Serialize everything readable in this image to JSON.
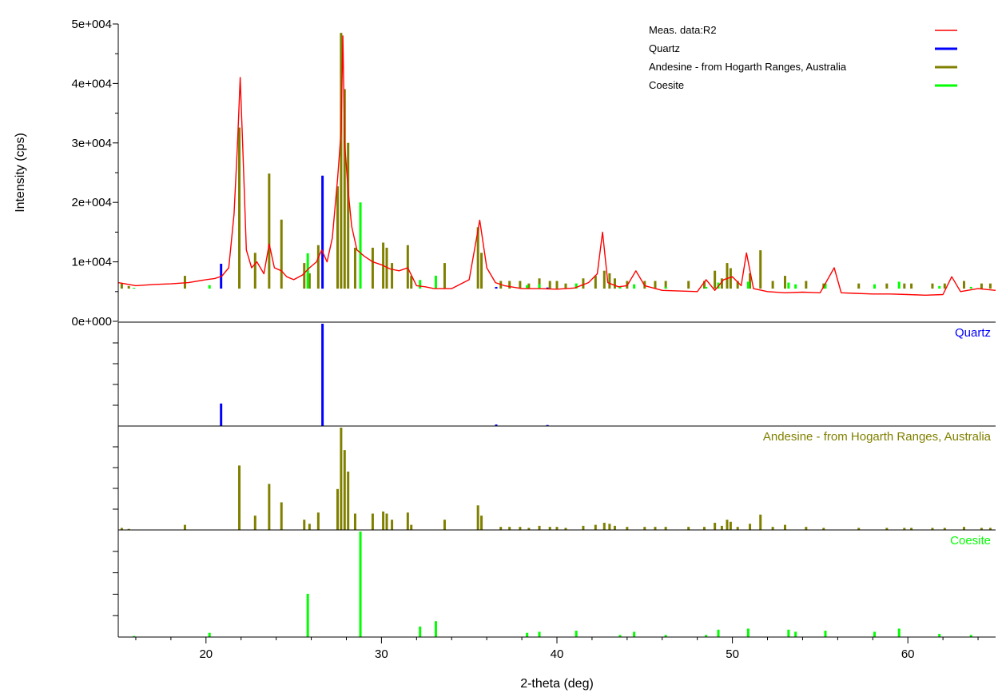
{
  "chart_data": {
    "type": "line",
    "xlabel": "2-theta (deg)",
    "ylabel": "Intensity (cps)",
    "xlim": [
      15,
      65
    ],
    "x_ticks": [
      20,
      30,
      40,
      50,
      60
    ],
    "x_tick_labels": [
      "20",
      "30",
      "40",
      "50",
      "60"
    ],
    "ylim": [
      0,
      50000
    ],
    "y_ticks": [
      0,
      10000,
      20000,
      30000,
      40000,
      50000
    ],
    "y_tick_labels": [
      "0e+000",
      "1e+004",
      "2e+004",
      "3e+004",
      "4e+004",
      "5e+004"
    ],
    "grid": false,
    "legend": {
      "position": "top-right",
      "entries": [
        {
          "name": "Meas. data:R2",
          "color": "#ff0000",
          "style": "line"
        },
        {
          "name": "Quartz",
          "color": "#0000ff",
          "style": "bar"
        },
        {
          "name": "Andesine - from Hogarth Ranges, Australia",
          "color": "#808000",
          "style": "bar"
        },
        {
          "name": "Coesite",
          "color": "#00ff00",
          "style": "bar"
        }
      ]
    },
    "measured": {
      "name": "Meas. data:R2",
      "color": "#ff0000",
      "x": [
        15,
        16,
        17,
        18,
        19,
        20,
        20.5,
        20.9,
        21.3,
        21.6,
        21.8,
        21.95,
        22.1,
        22.3,
        22.6,
        22.9,
        23.3,
        23.6,
        23.9,
        24.3,
        24.6,
        25,
        25.5,
        25.9,
        26.3,
        26.6,
        26.9,
        27.2,
        27.5,
        27.7,
        27.8,
        27.9,
        28.1,
        28.3,
        28.6,
        29,
        29.5,
        30,
        30.5,
        31,
        31.5,
        32,
        32.5,
        33,
        34,
        35,
        35.6,
        36,
        36.5,
        37,
        38,
        39,
        40,
        41,
        41.8,
        42.3,
        42.6,
        42.9,
        43.5,
        44,
        44.5,
        45,
        46,
        47,
        48,
        48.5,
        49,
        49.5,
        50,
        50.5,
        50.8,
        51.2,
        52,
        53,
        54,
        55,
        55.8,
        56.2,
        57,
        58,
        59,
        60,
        61,
        62,
        62.5,
        63,
        64,
        65
      ],
      "y": [
        6500,
        6000,
        6200,
        6300,
        6500,
        7000,
        7200,
        7600,
        9000,
        18000,
        30000,
        41000,
        29000,
        12000,
        9000,
        10000,
        8000,
        13000,
        9000,
        8500,
        7500,
        7000,
        7800,
        9000,
        10000,
        12000,
        10000,
        14000,
        24000,
        32000,
        48000,
        30000,
        22000,
        16000,
        12000,
        11000,
        10000,
        9500,
        8800,
        8500,
        9000,
        6000,
        5800,
        5500,
        5500,
        7000,
        17000,
        9000,
        6500,
        6000,
        5500,
        5500,
        5400,
        5600,
        6500,
        8000,
        15000,
        6500,
        5800,
        6000,
        8500,
        6000,
        5200,
        5100,
        5000,
        7000,
        5200,
        7000,
        7500,
        6000,
        11500,
        5500,
        5000,
        4800,
        4900,
        4800,
        9000,
        4800,
        4700,
        4600,
        4600,
        4500,
        4400,
        4500,
        7500,
        5000,
        5500,
        5200
      ]
    },
    "series": [
      {
        "name": "Quartz",
        "color": "#0000ff",
        "type": "stick",
        "positions": [
          20.86,
          26.64,
          36.54,
          39.46
        ],
        "relative_intensity": [
          22,
          100,
          1.5,
          1
        ]
      },
      {
        "name": "Andesine - from Hogarth Ranges, Australia",
        "color": "#808000",
        "type": "stick",
        "positions": [
          15.2,
          15.6,
          18.8,
          21.9,
          22.8,
          23.6,
          24.3,
          25.6,
          25.9,
          26.4,
          27.5,
          27.7,
          27.9,
          28.1,
          28.5,
          29.5,
          30.1,
          30.3,
          30.6,
          31.5,
          31.7,
          33.6,
          35.5,
          35.7,
          36.8,
          37.3,
          37.9,
          38.4,
          39.0,
          39.6,
          40.0,
          40.5,
          41.5,
          42.2,
          42.7,
          43.0,
          43.3,
          44.0,
          45.0,
          45.6,
          46.2,
          47.5,
          48.4,
          49.0,
          49.4,
          49.7,
          49.9,
          50.3,
          51.0,
          51.6,
          52.3,
          53.0,
          54.2,
          55.2,
          57.2,
          58.8,
          59.8,
          60.2,
          61.4,
          62.1,
          63.2,
          64.2,
          64.7
        ],
        "relative_intensity": [
          2,
          1,
          5,
          63,
          14,
          45,
          27,
          10,
          6,
          17,
          40,
          100,
          78,
          57,
          16,
          16,
          18,
          16,
          10,
          17,
          5,
          10,
          24,
          14,
          3,
          3,
          3,
          2,
          4,
          3,
          3,
          2,
          4,
          5,
          7,
          6,
          4,
          3,
          3,
          3,
          3,
          3,
          3,
          7,
          4,
          10,
          8,
          3,
          6,
          15,
          3,
          5,
          3,
          2,
          2,
          2,
          2,
          2,
          2,
          2,
          3,
          2,
          2
        ]
      },
      {
        "name": "Coesite",
        "color": "#00ff00",
        "type": "stick",
        "positions": [
          15.9,
          20.2,
          25.8,
          28.8,
          32.2,
          33.1,
          38.3,
          39.0,
          41.1,
          43.6,
          44.4,
          46.2,
          48.5,
          49.2,
          50.9,
          53.2,
          53.6,
          55.3,
          58.1,
          59.5,
          61.8,
          63.6
        ],
        "relative_intensity": [
          1,
          4,
          41,
          100,
          10,
          15,
          4,
          5,
          6,
          2,
          5,
          2,
          2,
          7,
          8,
          7,
          5,
          6,
          5,
          8,
          3,
          2
        ]
      }
    ]
  }
}
